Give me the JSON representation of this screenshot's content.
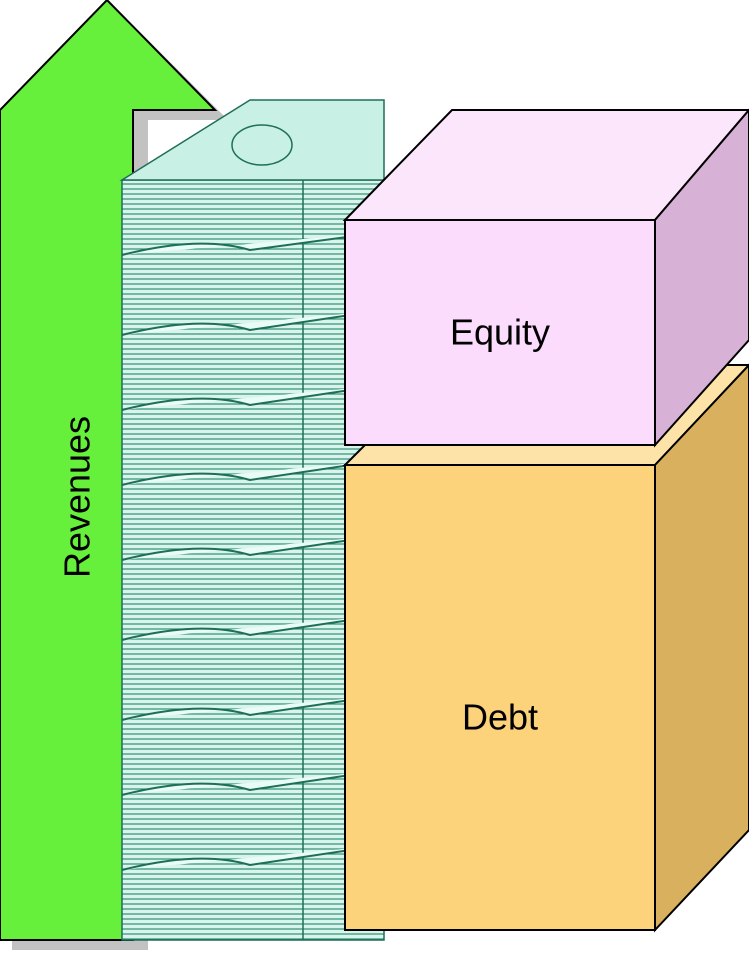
{
  "labels": {
    "revenues": "Revenues",
    "equity": "Equity",
    "debt": "Debt"
  }
}
